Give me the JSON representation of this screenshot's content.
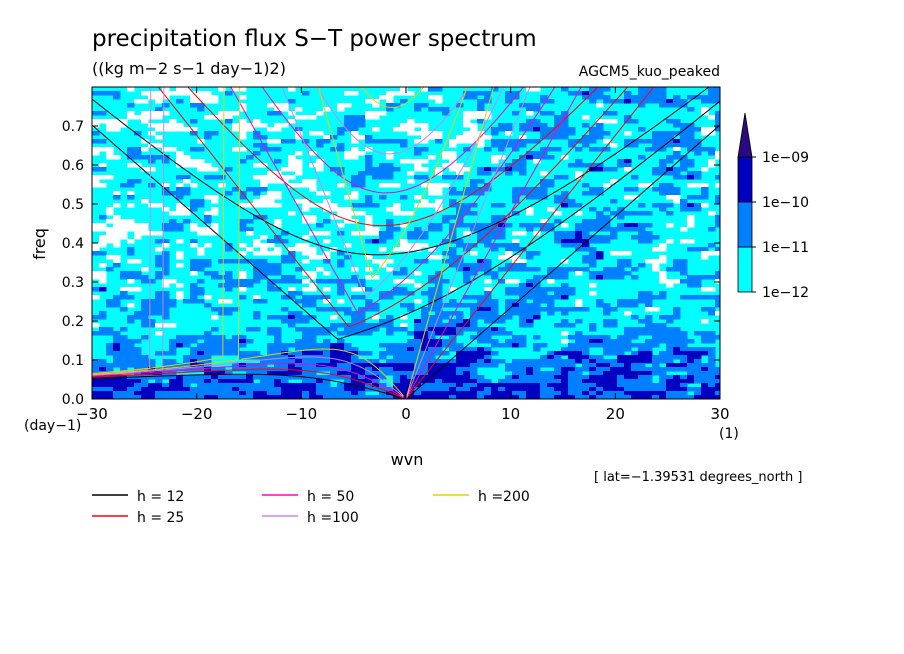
{
  "chart_data": {
    "type": "heatmap",
    "title": "precipitation flux S−T power spectrum",
    "subtitle": "((kg m−2 s−1 day−1)2)",
    "model_label": "AGCM5_kuo_peaked",
    "xlabel": "wvn",
    "ylabel": "freq",
    "x_unit": "(1)",
    "y_unit": "(day−1)",
    "xlim": [
      -30,
      30
    ],
    "ylim": [
      0,
      0.8
    ],
    "x_ticks": [
      {
        "v": -30,
        "label": "−30"
      },
      {
        "v": -20,
        "label": "−20"
      },
      {
        "v": -10,
        "label": "−10"
      },
      {
        "v": 0,
        "label": "0"
      },
      {
        "v": 10,
        "label": "10"
      },
      {
        "v": 20,
        "label": "20"
      },
      {
        "v": 30,
        "label": "30"
      }
    ],
    "y_ticks": [
      {
        "v": 0,
        "label": "0.0"
      },
      {
        "v": 0.1,
        "label": "0.1"
      },
      {
        "v": 0.2,
        "label": "0.2"
      },
      {
        "v": 0.3,
        "label": "0.3"
      },
      {
        "v": 0.4,
        "label": "0.4"
      },
      {
        "v": 0.5,
        "label": "0.5"
      },
      {
        "v": 0.6,
        "label": "0.6"
      },
      {
        "v": 0.7,
        "label": "0.7"
      }
    ],
    "latitude_note": "[ lat=−1.39531 degrees_north ]",
    "colorbar": {
      "levels": [
        {
          "label": "1e−12",
          "color": "#00ffff"
        },
        {
          "label": "1e−11",
          "color": "#0080ff"
        },
        {
          "label": "1e−10",
          "color": "#0000c0"
        },
        {
          "label": "1e−09",
          "color": "#2a0a80"
        }
      ],
      "extend": "max"
    },
    "field_colors": {
      "none": "#ffffff",
      "low": "#00ffff",
      "mid": "#0080ff",
      "high": "#0000c0"
    },
    "dispersion_curves": [
      {
        "label": "h = 12",
        "h": 12,
        "color": "#000000"
      },
      {
        "label": "h = 25",
        "h": 25,
        "color": "#ff0000"
      },
      {
        "label": "h = 50",
        "h": 50,
        "color": "#ff00c0"
      },
      {
        "label": "h =100",
        "h": 100,
        "color": "#d080f0"
      },
      {
        "label": "h =200",
        "h": 200,
        "color": "#e8d000"
      }
    ]
  }
}
